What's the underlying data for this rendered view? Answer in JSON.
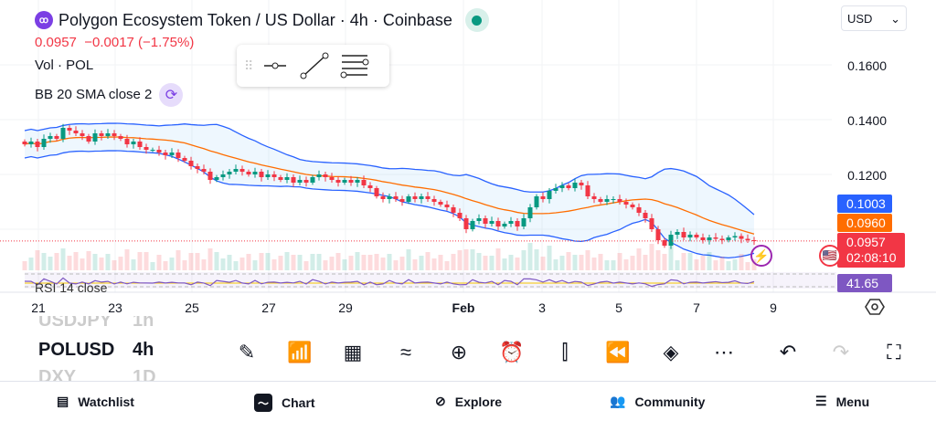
{
  "header": {
    "logo_text": "ꝏ",
    "title": "Polygon Ecosystem Token / US Dollar · 4h · Coinbase",
    "last": "0.0957",
    "change": "−0.0017 (−1.75%)",
    "vol_label": "Vol · POL",
    "bb_label": "BB 20 SMA close 2",
    "rsi_label": "RSI 14 close"
  },
  "currency": {
    "value": "USD",
    "icon": "chevron-down-icon"
  },
  "drawing_toolbar": {
    "tools": [
      "horizontal-ray-icon",
      "trend-line-icon",
      "fib-levels-icon"
    ]
  },
  "price_axis": {
    "labels": [
      "0.1600",
      "0.1400",
      "0.1200"
    ],
    "upper_band": "0.1003",
    "basis": "0.0960",
    "price": "0.0957",
    "countdown": "02:08:10",
    "rsi": "41.65"
  },
  "time_axis": [
    "21",
    "23",
    "25",
    "27",
    "29",
    "Feb",
    "3",
    "5",
    "7",
    "9"
  ],
  "colors": {
    "up": "#089981",
    "down": "#f23645",
    "upper": "#2962ff",
    "basis": "#ff6d00",
    "rsi": "#7e57c2"
  },
  "chart_data": {
    "type": "candlestick",
    "interval": "4h",
    "ylim": [
      0.09,
      0.17
    ],
    "closes": [
      0.131,
      0.132,
      0.13,
      0.133,
      0.134,
      0.133,
      0.137,
      0.136,
      0.135,
      0.134,
      0.132,
      0.135,
      0.134,
      0.135,
      0.134,
      0.133,
      0.131,
      0.132,
      0.13,
      0.129,
      0.129,
      0.128,
      0.127,
      0.128,
      0.126,
      0.125,
      0.123,
      0.122,
      0.121,
      0.118,
      0.119,
      0.12,
      0.121,
      0.122,
      0.121,
      0.12,
      0.121,
      0.119,
      0.12,
      0.119,
      0.118,
      0.119,
      0.117,
      0.118,
      0.117,
      0.119,
      0.12,
      0.119,
      0.118,
      0.117,
      0.118,
      0.117,
      0.118,
      0.116,
      0.115,
      0.112,
      0.111,
      0.112,
      0.111,
      0.11,
      0.112,
      0.111,
      0.112,
      0.111,
      0.11,
      0.109,
      0.108,
      0.106,
      0.104,
      0.1,
      0.103,
      0.104,
      0.102,
      0.103,
      0.101,
      0.102,
      0.103,
      0.101,
      0.104,
      0.108,
      0.112,
      0.111,
      0.114,
      0.115,
      0.116,
      0.115,
      0.117,
      0.116,
      0.112,
      0.111,
      0.11,
      0.111,
      0.111,
      0.11,
      0.109,
      0.108,
      0.106,
      0.104,
      0.1,
      0.096,
      0.094,
      0.098,
      0.099,
      0.097,
      0.098,
      0.097,
      0.096,
      0.097,
      0.0965,
      0.096,
      0.097,
      0.0975,
      0.0965,
      0.096,
      0.0957
    ]
  },
  "symbol_picker": [
    {
      "symbol": "USDJPY",
      "interval": "1h"
    },
    {
      "symbol": "POLUSD",
      "interval": "4h"
    },
    {
      "symbol": "DXY",
      "interval": "1D"
    }
  ],
  "bottom_toolbar": [
    "draw-icon",
    "indicators-icon",
    "templates-icon",
    "compare-icon",
    "add-icon",
    "alert-icon",
    "chart-type-icon",
    "replay-icon",
    "layers-icon",
    "more-icon",
    "undo-icon",
    "redo-icon",
    "fullscreen-icon"
  ],
  "nav": [
    {
      "label": "Watchlist"
    },
    {
      "label": "Chart"
    },
    {
      "label": "Explore"
    },
    {
      "label": "Community"
    },
    {
      "label": "Menu"
    }
  ]
}
